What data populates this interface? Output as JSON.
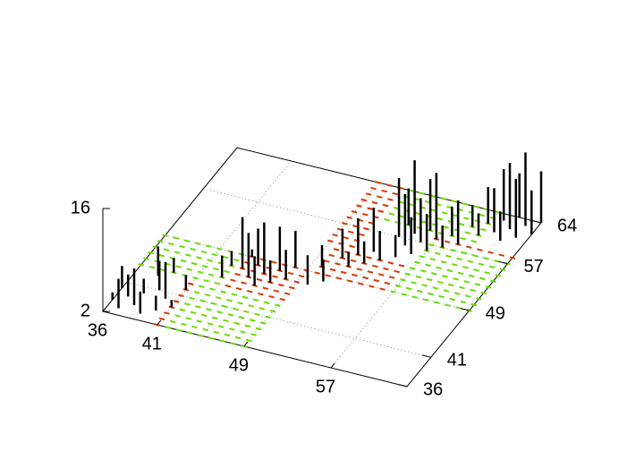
{
  "chart_data": {
    "type": "impulses3d",
    "xlim": [
      36,
      64
    ],
    "ylim": [
      36,
      64
    ],
    "zlim": [
      2,
      16
    ],
    "xticks": [
      36,
      41,
      49,
      57
    ],
    "yticks": [
      36,
      41,
      49,
      57,
      64
    ],
    "zticks": [
      2,
      16
    ],
    "grid": true,
    "color": "#000000",
    "floor": [
      {
        "x": [
          42,
          49
        ],
        "y": [
          36,
          43
        ],
        "color": "#66dd00"
      },
      {
        "x": [
          41,
          41
        ],
        "y": [
          36,
          43
        ],
        "color": "#dd3300"
      },
      {
        "x": [
          36,
          43
        ],
        "y": [
          44,
          49
        ],
        "color": "#66dd00"
      },
      {
        "x": [
          44,
          49
        ],
        "y": [
          44,
          49
        ],
        "color": "#dd3300"
      },
      {
        "x": [
          50,
          56
        ],
        "y": [
          49,
          53
        ],
        "color": "#dd3300"
      },
      {
        "x": [
          57,
          64
        ],
        "y": [
          49,
          57
        ],
        "color": "#66dd00"
      },
      {
        "x": [
          57,
          64
        ],
        "y": [
          58,
          58
        ],
        "color": "#dd3300"
      },
      {
        "x": [
          52,
          60
        ],
        "y": [
          59,
          64
        ],
        "color": "#66dd00"
      },
      {
        "x": [
          49,
          51
        ],
        "y": [
          54,
          64
        ],
        "color": "#dd3300"
      }
    ],
    "points": [
      [
        37,
        37,
        6
      ],
      [
        37,
        39,
        5
      ],
      [
        38,
        38,
        7
      ],
      [
        38,
        40,
        4
      ],
      [
        39,
        37,
        5
      ],
      [
        39,
        41,
        6
      ],
      [
        40,
        38,
        4
      ],
      [
        40,
        40,
        7
      ],
      [
        36,
        38,
        3
      ],
      [
        36,
        40,
        5
      ],
      [
        41,
        39,
        3
      ],
      [
        41,
        42,
        4
      ],
      [
        38,
        43,
        6
      ],
      [
        39,
        44,
        4
      ],
      [
        43,
        45,
        5
      ],
      [
        44,
        47,
        9
      ],
      [
        45,
        46,
        8
      ],
      [
        45,
        48,
        7
      ],
      [
        46,
        45,
        6
      ],
      [
        46,
        47,
        9
      ],
      [
        47,
        46,
        5
      ],
      [
        47,
        48,
        8
      ],
      [
        48,
        47,
        6
      ],
      [
        43,
        47,
        4
      ],
      [
        44,
        49,
        3
      ],
      [
        48,
        49,
        7
      ],
      [
        50,
        47,
        6
      ],
      [
        51,
        48,
        5
      ],
      [
        50,
        50,
        5
      ],
      [
        51,
        52,
        6
      ],
      [
        52,
        51,
        4
      ],
      [
        52,
        53,
        7
      ],
      [
        53,
        52,
        5
      ],
      [
        54,
        53,
        6
      ],
      [
        53,
        54,
        8
      ],
      [
        55,
        54,
        5
      ],
      [
        56,
        55,
        7
      ],
      [
        54,
        57,
        10
      ],
      [
        55,
        58,
        12
      ],
      [
        55,
        56,
        9
      ],
      [
        56,
        57,
        8
      ],
      [
        57,
        58,
        11
      ],
      [
        57,
        56,
        7
      ],
      [
        58,
        59,
        6
      ],
      [
        56,
        59,
        9
      ],
      [
        58,
        57,
        5
      ],
      [
        59,
        58,
        8
      ],
      [
        54,
        59,
        7
      ],
      [
        60,
        60,
        5
      ],
      [
        61,
        61,
        8
      ],
      [
        61,
        63,
        9
      ],
      [
        62,
        62,
        11
      ],
      [
        62,
        64,
        8
      ],
      [
        63,
        61,
        10
      ],
      [
        63,
        63,
        12
      ],
      [
        64,
        62,
        8
      ],
      [
        64,
        64,
        9
      ],
      [
        60,
        62,
        7
      ],
      [
        62,
        60,
        6
      ],
      [
        59,
        61,
        5
      ]
    ]
  }
}
